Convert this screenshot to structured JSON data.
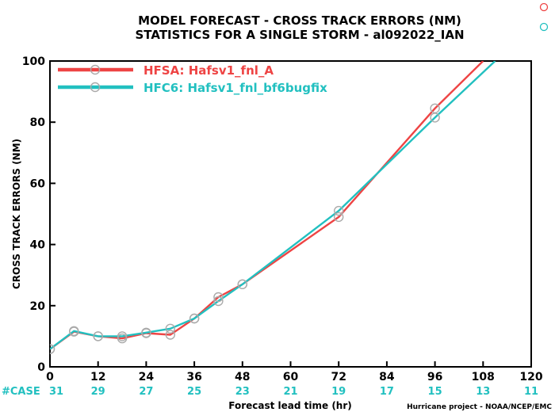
{
  "chart_data": {
    "type": "line",
    "title": "MODEL FORECAST - CROSS TRACK ERRORS (NM)",
    "subtitle": "STATISTICS FOR A SINGLE STORM - al092022_IAN",
    "xlabel": "Forecast lead time (hr)",
    "ylabel": "CROSS TRACK ERRORS (NM)",
    "xlim": [
      0,
      120
    ],
    "ylim": [
      0,
      100
    ],
    "x_ticks": [
      0,
      12,
      24,
      36,
      48,
      60,
      72,
      84,
      96,
      108,
      120
    ],
    "y_ticks": [
      0,
      20,
      40,
      60,
      80,
      100
    ],
    "grid": false,
    "legend_position": "top-left",
    "case_label": "#CASE",
    "case_color": "#22c0c0",
    "case_counts": [
      31,
      29,
      27,
      25,
      23,
      21,
      19,
      17,
      15,
      13,
      11
    ],
    "series": [
      {
        "name": "HFSA: Hafsv1_fnl_A",
        "color": "#ee4444",
        "x": [
          0,
          6,
          12,
          18,
          24,
          30,
          36,
          42,
          48,
          72,
          96,
          108
        ],
        "y": [
          5.8,
          11.5,
          10.0,
          9.3,
          11.0,
          10.5,
          15.8,
          22.8,
          27.0,
          49.0,
          84.5,
          100
        ],
        "markers": [
          true,
          true,
          true,
          true,
          true,
          true,
          true,
          true,
          true,
          true,
          true,
          false
        ]
      },
      {
        "name": "HFC6: Hafsv1_fnl_bf6bugfix",
        "color": "#22c0c0",
        "x": [
          0,
          6,
          12,
          18,
          24,
          30,
          36,
          42,
          48,
          72,
          96,
          111
        ],
        "y": [
          5.8,
          11.7,
          10.0,
          10.0,
          11.2,
          12.5,
          15.8,
          21.5,
          27.0,
          51.0,
          81.5,
          100
        ],
        "markers": [
          true,
          true,
          true,
          true,
          true,
          true,
          true,
          true,
          true,
          true,
          true,
          false
        ]
      }
    ]
  },
  "footer": {
    "credit": "Hurricane project - NOAA/NCEP/EMC"
  }
}
